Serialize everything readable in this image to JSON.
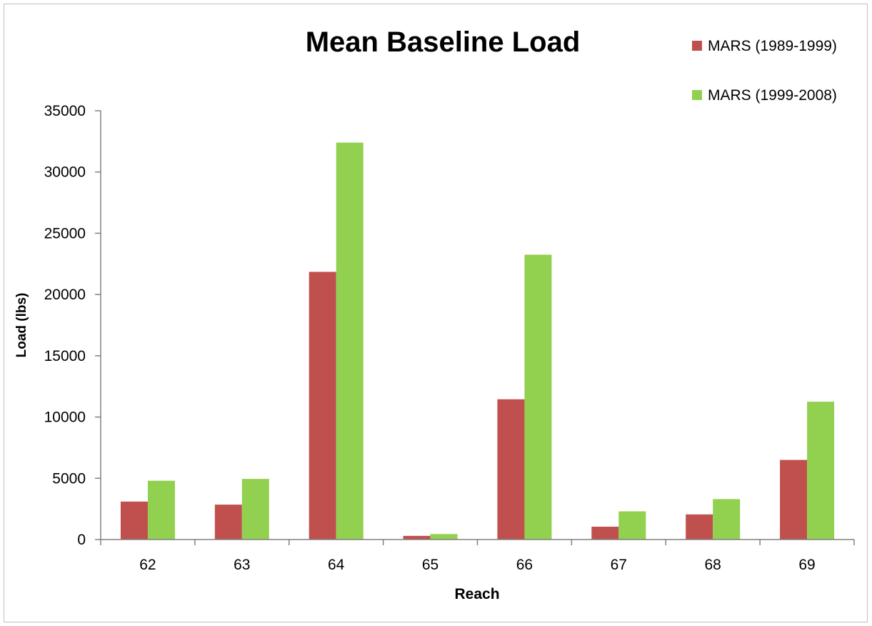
{
  "chart_data": {
    "type": "bar",
    "title": "Mean Baseline Load",
    "xlabel": "Reach",
    "ylabel": "Load (lbs)",
    "categories": [
      "62",
      "63",
      "64",
      "65",
      "66",
      "67",
      "68",
      "69"
    ],
    "series": [
      {
        "name": "MARS (1989-1999)",
        "color": "#c0504d",
        "values": [
          3100,
          2850,
          21850,
          300,
          11450,
          1050,
          2050,
          6500
        ]
      },
      {
        "name": "MARS (1999-2008)",
        "color": "#92d050",
        "values": [
          4800,
          4950,
          32400,
          450,
          23250,
          2300,
          3300,
          11250
        ]
      }
    ],
    "ylim": [
      0,
      35000
    ],
    "yticks": [
      0,
      5000,
      10000,
      15000,
      20000,
      25000,
      30000,
      35000
    ],
    "grid": false,
    "legend_position": "top-right"
  }
}
